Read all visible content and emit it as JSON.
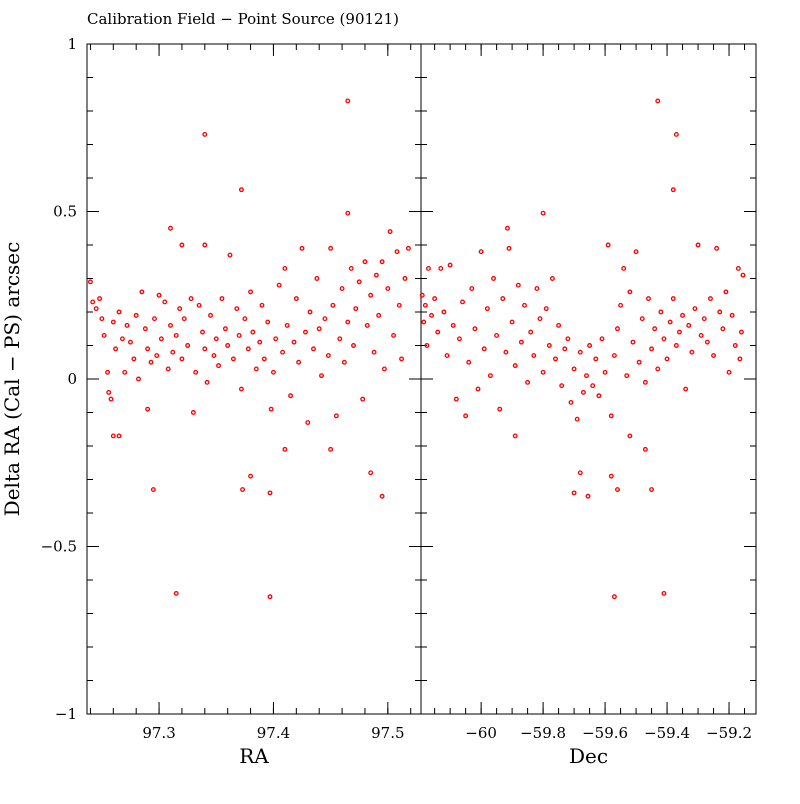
{
  "chart_data": {
    "type": "scatter",
    "title": "Calibration Field − Point Source (90121)",
    "ylabel": "Delta RA (Cal − PS) arcsec",
    "ylim": [
      -1,
      1
    ],
    "yticks": [
      {
        "v": -1,
        "label": "−1"
      },
      {
        "v": -0.5,
        "label": "−0.5"
      },
      {
        "v": 0,
        "label": "0"
      },
      {
        "v": 0.5,
        "label": "0.5"
      },
      {
        "v": 1,
        "label": "1"
      }
    ],
    "marker_color": "#ff0000",
    "panels": [
      {
        "xlabel": "RA",
        "xlim": [
          97.237,
          97.529
        ],
        "xticks": [
          {
            "v": 97.3,
            "label": "97.3"
          },
          {
            "v": 97.4,
            "label": "97.4"
          },
          {
            "v": 97.5,
            "label": "97.5"
          }
        ],
        "minor_step": 0.02,
        "points": [
          [
            97.465,
            0.83
          ],
          [
            97.34,
            0.73
          ],
          [
            97.372,
            0.565
          ],
          [
            97.465,
            0.495
          ],
          [
            97.31,
            0.45
          ],
          [
            97.32,
            0.4
          ],
          [
            97.34,
            0.4
          ],
          [
            97.315,
            -0.64
          ],
          [
            97.397,
            -0.65
          ],
          [
            97.295,
            -0.33
          ],
          [
            97.373,
            -0.33
          ],
          [
            97.397,
            -0.34
          ],
          [
            97.38,
            -0.29
          ],
          [
            97.485,
            -0.28
          ],
          [
            97.495,
            -0.35
          ],
          [
            97.265,
            -0.17
          ],
          [
            97.26,
            -0.17
          ],
          [
            97.41,
            -0.21
          ],
          [
            97.45,
            -0.21
          ],
          [
            97.24,
            0.29
          ],
          [
            97.242,
            0.23
          ],
          [
            97.245,
            0.21
          ],
          [
            97.248,
            0.24
          ],
          [
            97.25,
            0.18
          ],
          [
            97.252,
            0.13
          ],
          [
            97.255,
            0.02
          ],
          [
            97.256,
            -0.04
          ],
          [
            97.258,
            -0.06
          ],
          [
            97.26,
            0.17
          ],
          [
            97.262,
            0.09
          ],
          [
            97.265,
            0.2
          ],
          [
            97.268,
            0.12
          ],
          [
            97.27,
            0.02
          ],
          [
            97.272,
            0.16
          ],
          [
            97.275,
            0.11
          ],
          [
            97.278,
            0.06
          ],
          [
            97.28,
            0.19
          ],
          [
            97.282,
            0.0
          ],
          [
            97.285,
            0.26
          ],
          [
            97.288,
            0.15
          ],
          [
            97.29,
            0.09
          ],
          [
            97.29,
            -0.09
          ],
          [
            97.293,
            0.05
          ],
          [
            97.296,
            0.18
          ],
          [
            97.298,
            0.07
          ],
          [
            97.3,
            0.25
          ],
          [
            97.302,
            0.12
          ],
          [
            97.305,
            0.23
          ],
          [
            97.308,
            0.03
          ],
          [
            97.31,
            0.16
          ],
          [
            97.312,
            0.08
          ],
          [
            97.315,
            0.13
          ],
          [
            97.318,
            0.21
          ],
          [
            97.32,
            0.06
          ],
          [
            97.322,
            0.18
          ],
          [
            97.325,
            0.1
          ],
          [
            97.328,
            0.24
          ],
          [
            97.33,
            -0.1
          ],
          [
            97.332,
            0.02
          ],
          [
            97.335,
            0.22
          ],
          [
            97.338,
            0.14
          ],
          [
            97.34,
            0.09
          ],
          [
            97.342,
            -0.01
          ],
          [
            97.345,
            0.19
          ],
          [
            97.348,
            0.07
          ],
          [
            97.35,
            0.12
          ],
          [
            97.352,
            0.04
          ],
          [
            97.355,
            0.24
          ],
          [
            97.358,
            0.15
          ],
          [
            97.36,
            0.1
          ],
          [
            97.362,
            0.37
          ],
          [
            97.365,
            0.06
          ],
          [
            97.368,
            0.21
          ],
          [
            97.37,
            0.13
          ],
          [
            97.372,
            -0.03
          ],
          [
            97.375,
            0.18
          ],
          [
            97.378,
            0.09
          ],
          [
            97.38,
            0.26
          ],
          [
            97.382,
            0.14
          ],
          [
            97.385,
            0.03
          ],
          [
            97.388,
            0.11
          ],
          [
            97.39,
            0.22
          ],
          [
            97.392,
            0.06
          ],
          [
            97.395,
            0.17
          ],
          [
            97.398,
            -0.09
          ],
          [
            97.4,
            0.02
          ],
          [
            97.402,
            0.12
          ],
          [
            97.405,
            0.28
          ],
          [
            97.408,
            0.08
          ],
          [
            97.41,
            0.33
          ],
          [
            97.412,
            0.16
          ],
          [
            97.415,
            -0.05
          ],
          [
            97.418,
            0.11
          ],
          [
            97.42,
            0.24
          ],
          [
            97.422,
            0.05
          ],
          [
            97.425,
            0.39
          ],
          [
            97.428,
            0.14
          ],
          [
            97.43,
            -0.13
          ],
          [
            97.432,
            0.2
          ],
          [
            97.435,
            0.09
          ],
          [
            97.438,
            0.3
          ],
          [
            97.44,
            0.15
          ],
          [
            97.442,
            0.01
          ],
          [
            97.445,
            0.18
          ],
          [
            97.448,
            0.07
          ],
          [
            97.45,
            0.39
          ],
          [
            97.452,
            0.22
          ],
          [
            97.455,
            -0.11
          ],
          [
            97.458,
            0.12
          ],
          [
            97.46,
            0.27
          ],
          [
            97.462,
            0.05
          ],
          [
            97.465,
            0.17
          ],
          [
            97.468,
            0.33
          ],
          [
            97.47,
            0.1
          ],
          [
            97.472,
            0.21
          ],
          [
            97.475,
            0.29
          ],
          [
            97.478,
            -0.06
          ],
          [
            97.48,
            0.35
          ],
          [
            97.482,
            0.16
          ],
          [
            97.485,
            0.25
          ],
          [
            97.488,
            0.08
          ],
          [
            97.49,
            0.31
          ],
          [
            97.492,
            0.19
          ],
          [
            97.495,
            0.35
          ],
          [
            97.497,
            0.03
          ],
          [
            97.5,
            0.27
          ],
          [
            97.502,
            0.44
          ],
          [
            97.505,
            0.13
          ],
          [
            97.508,
            0.38
          ],
          [
            97.51,
            0.22
          ],
          [
            97.512,
            0.06
          ],
          [
            97.515,
            0.3
          ],
          [
            97.518,
            0.39
          ]
        ]
      },
      {
        "xlabel": "Dec",
        "xlim": [
          -60.194,
          -59.113
        ],
        "xticks": [
          {
            "v": -60,
            "label": "−60"
          },
          {
            "v": -59.8,
            "label": "−59.8"
          },
          {
            "v": -59.6,
            "label": "−59.6"
          },
          {
            "v": -59.4,
            "label": "−59.4"
          },
          {
            "v": -59.2,
            "label": "−59.2"
          }
        ],
        "minor_step": 0.05,
        "points": [
          [
            -59.43,
            0.83
          ],
          [
            -59.37,
            0.73
          ],
          [
            -59.38,
            0.565
          ],
          [
            -59.8,
            0.495
          ],
          [
            -59.915,
            0.45
          ],
          [
            -59.57,
            -0.65
          ],
          [
            -59.41,
            -0.64
          ],
          [
            -59.68,
            -0.28
          ],
          [
            -59.7,
            -0.34
          ],
          [
            -59.655,
            -0.35
          ],
          [
            -59.56,
            -0.33
          ],
          [
            -59.45,
            -0.33
          ],
          [
            -59.58,
            -0.29
          ],
          [
            -59.89,
            -0.17
          ],
          [
            -59.52,
            -0.17
          ],
          [
            -59.47,
            -0.21
          ],
          [
            -60.19,
            0.25
          ],
          [
            -60.185,
            0.17
          ],
          [
            -60.18,
            0.22
          ],
          [
            -60.175,
            0.1
          ],
          [
            -60.17,
            0.33
          ],
          [
            -60.16,
            0.19
          ],
          [
            -60.15,
            0.24
          ],
          [
            -60.14,
            0.14
          ],
          [
            -60.13,
            0.33
          ],
          [
            -60.12,
            0.2
          ],
          [
            -60.11,
            0.07
          ],
          [
            -60.1,
            0.34
          ],
          [
            -60.09,
            0.16
          ],
          [
            -60.08,
            -0.06
          ],
          [
            -60.07,
            0.12
          ],
          [
            -60.06,
            0.23
          ],
          [
            -60.05,
            -0.11
          ],
          [
            -60.04,
            0.05
          ],
          [
            -60.03,
            0.27
          ],
          [
            -60.02,
            0.15
          ],
          [
            -60.01,
            -0.03
          ],
          [
            -60.0,
            0.38
          ],
          [
            -59.99,
            0.09
          ],
          [
            -59.98,
            0.21
          ],
          [
            -59.97,
            0.01
          ],
          [
            -59.96,
            0.3
          ],
          [
            -59.95,
            0.13
          ],
          [
            -59.94,
            -0.09
          ],
          [
            -59.93,
            0.24
          ],
          [
            -59.92,
            0.08
          ],
          [
            -59.91,
            0.39
          ],
          [
            -59.9,
            0.17
          ],
          [
            -59.89,
            0.04
          ],
          [
            -59.88,
            0.28
          ],
          [
            -59.87,
            0.11
          ],
          [
            -59.86,
            0.22
          ],
          [
            -59.85,
            -0.01
          ],
          [
            -59.84,
            0.14
          ],
          [
            -59.83,
            0.07
          ],
          [
            -59.82,
            0.27
          ],
          [
            -59.81,
            0.18
          ],
          [
            -59.8,
            0.02
          ],
          [
            -59.79,
            0.21
          ],
          [
            -59.78,
            0.1
          ],
          [
            -59.77,
            0.3
          ],
          [
            -59.76,
            0.06
          ],
          [
            -59.75,
            0.16
          ],
          [
            -59.74,
            -0.02
          ],
          [
            -59.73,
            0.09
          ],
          [
            -59.72,
            0.12
          ],
          [
            -59.71,
            -0.07
          ],
          [
            -59.7,
            0.03
          ],
          [
            -59.69,
            -0.12
          ],
          [
            -59.68,
            0.08
          ],
          [
            -59.67,
            -0.04
          ],
          [
            -59.66,
            0.01
          ],
          [
            -59.65,
            0.1
          ],
          [
            -59.64,
            -0.02
          ],
          [
            -59.63,
            0.06
          ],
          [
            -59.62,
            -0.05
          ],
          [
            -59.61,
            0.12
          ],
          [
            -59.6,
            0.02
          ],
          [
            -59.59,
            0.4
          ],
          [
            -59.58,
            -0.11
          ],
          [
            -59.57,
            0.07
          ],
          [
            -59.56,
            0.15
          ],
          [
            -59.55,
            0.22
          ],
          [
            -59.54,
            0.33
          ],
          [
            -59.53,
            0.01
          ],
          [
            -59.52,
            0.26
          ],
          [
            -59.51,
            0.11
          ],
          [
            -59.5,
            0.38
          ],
          [
            -59.49,
            0.05
          ],
          [
            -59.48,
            0.18
          ],
          [
            -59.47,
            -0.01
          ],
          [
            -59.46,
            0.24
          ],
          [
            -59.45,
            0.09
          ],
          [
            -59.44,
            0.15
          ],
          [
            -59.43,
            0.03
          ],
          [
            -59.42,
            0.2
          ],
          [
            -59.41,
            0.12
          ],
          [
            -59.4,
            0.06
          ],
          [
            -59.39,
            0.17
          ],
          [
            -59.38,
            0.24
          ],
          [
            -59.37,
            0.1
          ],
          [
            -59.36,
            0.14
          ],
          [
            -59.35,
            0.19
          ],
          [
            -59.34,
            -0.03
          ],
          [
            -59.33,
            0.16
          ],
          [
            -59.32,
            0.08
          ],
          [
            -59.31,
            0.21
          ],
          [
            -59.3,
            0.4
          ],
          [
            -59.29,
            0.13
          ],
          [
            -59.28,
            0.18
          ],
          [
            -59.27,
            0.11
          ],
          [
            -59.26,
            0.24
          ],
          [
            -59.25,
            0.07
          ],
          [
            -59.24,
            0.39
          ],
          [
            -59.23,
            0.2
          ],
          [
            -59.22,
            0.15
          ],
          [
            -59.21,
            0.26
          ],
          [
            -59.2,
            0.02
          ],
          [
            -59.19,
            0.19
          ],
          [
            -59.18,
            0.1
          ],
          [
            -59.17,
            0.33
          ],
          [
            -59.165,
            0.06
          ],
          [
            -59.16,
            0.14
          ],
          [
            -59.155,
            0.31
          ]
        ]
      }
    ]
  }
}
